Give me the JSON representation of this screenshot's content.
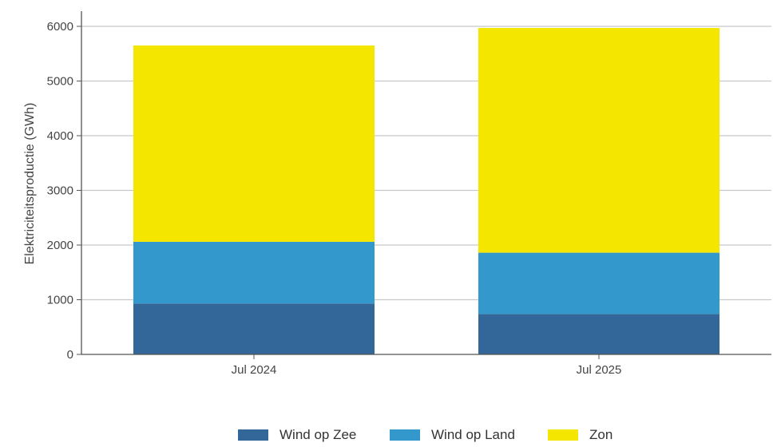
{
  "chart_data": {
    "type": "bar",
    "stacked": true,
    "categories": [
      "Jul 2024",
      "Jul 2025"
    ],
    "series": [
      {
        "name": "Wind op Zee",
        "color": "#336699",
        "values": [
          930,
          740
        ]
      },
      {
        "name": "Wind op Land",
        "color": "#3399cc",
        "values": [
          1130,
          1120
        ]
      },
      {
        "name": "Zon",
        "color": "#f5e600",
        "values": [
          3590,
          4110
        ]
      }
    ],
    "ylabel": "Elektriciteitsproductie (GWh)",
    "xlabel": "",
    "ylim": [
      0,
      6000
    ],
    "yticks": [
      0,
      1000,
      2000,
      3000,
      4000,
      5000,
      6000
    ],
    "grid": true,
    "legend_position": "bottom"
  }
}
